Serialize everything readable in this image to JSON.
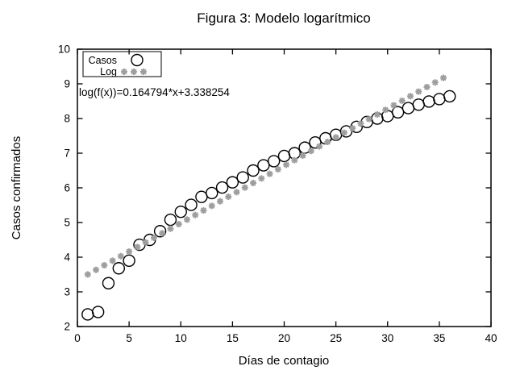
{
  "window": {
    "background": "#ffffff"
  },
  "chart_data": {
    "type": "scatter",
    "title": "Figura 3: Modelo logarítmico",
    "xlabel": "Días de contagio",
    "ylabel": "Casos confirmados",
    "xlim": [
      0,
      40
    ],
    "ylim": [
      2,
      10
    ],
    "xticks": [
      0,
      5,
      10,
      15,
      20,
      25,
      30,
      35,
      40
    ],
    "yticks": [
      2,
      3,
      4,
      5,
      6,
      7,
      8,
      9,
      10
    ],
    "grid": false,
    "legend_position": "top-left",
    "annotation": {
      "text": "log(f(x))=0.164794*x+3.338254"
    },
    "colors": {
      "data": "#000000",
      "fit": "#9e9e9e"
    },
    "series": [
      {
        "name": "Casos",
        "marker": "open-circle",
        "color": "#000000",
        "x": [
          1,
          2,
          3,
          4,
          5,
          6,
          7,
          8,
          9,
          10,
          11,
          12,
          13,
          14,
          15,
          16,
          17,
          18,
          19,
          20,
          21,
          22,
          23,
          24,
          25,
          26,
          27,
          28,
          29,
          30,
          31,
          32,
          33,
          34,
          35,
          36
        ],
        "y": [
          2.35,
          2.42,
          3.25,
          3.68,
          3.9,
          4.36,
          4.5,
          4.75,
          5.08,
          5.31,
          5.51,
          5.74,
          5.85,
          6.01,
          6.16,
          6.3,
          6.5,
          6.65,
          6.77,
          6.92,
          7.0,
          7.16,
          7.31,
          7.43,
          7.53,
          7.63,
          7.76,
          7.9,
          8.0,
          8.07,
          8.18,
          8.3,
          8.4,
          8.49,
          8.56,
          8.64
        ]
      },
      {
        "name": "Log",
        "marker": "asterisk",
        "color": "#9e9e9e",
        "equation": "log(f(x))=0.164794*x+3.338254",
        "slope": 0.164794,
        "intercept": 3.338254,
        "x_start": 1.0,
        "x_step": 0.8,
        "n_points": 44
      }
    ]
  }
}
